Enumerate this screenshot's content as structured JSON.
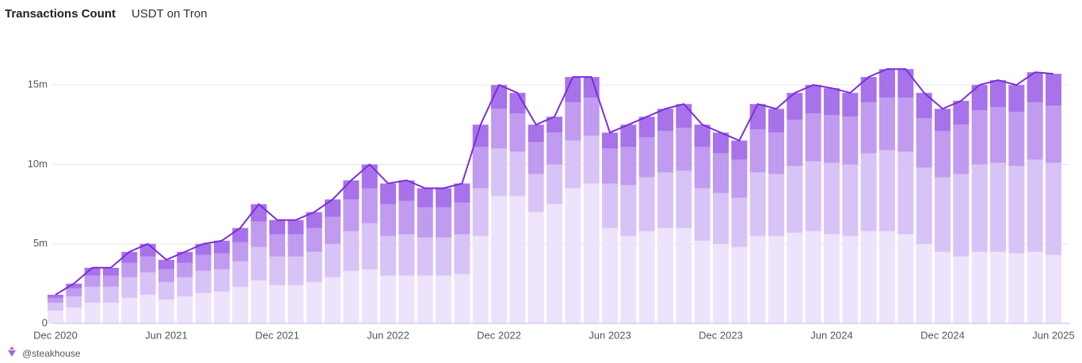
{
  "chart_data": {
    "type": "stacked-bar-line",
    "title": "Transactions Count",
    "subtitle": "USDT on Tron",
    "footer": "@steakhouse",
    "categories": [
      "Dec 2020",
      null,
      null,
      null,
      null,
      null,
      "Jun 2021",
      null,
      null,
      null,
      null,
      null,
      "Dec 2021",
      null,
      null,
      null,
      null,
      null,
      "Jun 2022",
      null,
      null,
      null,
      null,
      null,
      "Dec 2022",
      null,
      null,
      null,
      null,
      null,
      "Jun 2023",
      null,
      null,
      null,
      null,
      null,
      "Dec 2023",
      null,
      null,
      null,
      null,
      null,
      "Jun 2024",
      null,
      null,
      null,
      null,
      null,
      "Dec 2024",
      null,
      null,
      null,
      null,
      null,
      "Jun 2025"
    ],
    "series": [
      {
        "color": "#ede3fb",
        "values": [
          800000,
          1000000,
          1300000,
          1300000,
          1600000,
          1800000,
          1500000,
          1700000,
          1900000,
          2000000,
          2300000,
          2700000,
          2400000,
          2400000,
          2600000,
          2900000,
          3300000,
          3400000,
          3000000,
          3000000,
          3000000,
          3000000,
          3100000,
          5500000,
          8000000,
          8000000,
          7000000,
          7500000,
          8500000,
          8800000,
          6000000,
          5500000,
          5800000,
          6000000,
          6000000,
          5200000,
          5000000,
          4800000,
          5500000,
          5500000,
          5700000,
          5800000,
          5600000,
          5500000,
          5800000,
          5800000,
          5600000,
          5000000,
          4500000,
          4200000,
          4500000,
          4500000,
          4400000,
          4500000,
          4300000
        ]
      },
      {
        "color": "#d8c3f6",
        "values": [
          500000,
          700000,
          1000000,
          1000000,
          1300000,
          1400000,
          1100000,
          1200000,
          1400000,
          1400000,
          1600000,
          2100000,
          1800000,
          1800000,
          1900000,
          2100000,
          2500000,
          2900000,
          2500000,
          2600000,
          2400000,
          2400000,
          2500000,
          3000000,
          3000000,
          2800000,
          2400000,
          2500000,
          3000000,
          3000000,
          2800000,
          3200000,
          3400000,
          3500000,
          3600000,
          3300000,
          3200000,
          3100000,
          4000000,
          3900000,
          4200000,
          4400000,
          4500000,
          4500000,
          4900000,
          5100000,
          5200000,
          4800000,
          4700000,
          5200000,
          5500000,
          5600000,
          5500000,
          5800000,
          5800000
        ]
      },
      {
        "color": "#c09bf0",
        "values": [
          300000,
          500000,
          700000,
          700000,
          900000,
          1000000,
          800000,
          900000,
          1000000,
          1000000,
          1200000,
          1600000,
          1400000,
          1400000,
          1500000,
          1700000,
          2000000,
          2200000,
          2000000,
          2100000,
          1900000,
          1900000,
          2000000,
          2600000,
          2500000,
          2400000,
          2000000,
          2000000,
          2400000,
          2400000,
          2200000,
          2400000,
          2500000,
          2600000,
          2700000,
          2600000,
          2500000,
          2400000,
          2700000,
          2600000,
          2900000,
          3000000,
          3000000,
          3000000,
          3200000,
          3300000,
          3400000,
          3100000,
          2900000,
          3100000,
          3400000,
          3500000,
          3400000,
          3600000,
          3600000
        ]
      },
      {
        "color": "#a872ea",
        "values": [
          200000,
          300000,
          500000,
          500000,
          700000,
          800000,
          600000,
          700000,
          700000,
          800000,
          900000,
          1100000,
          900000,
          900000,
          1000000,
          1100000,
          1200000,
          1500000,
          1300000,
          1300000,
          1200000,
          1200000,
          1200000,
          1400000,
          1500000,
          1300000,
          1100000,
          1000000,
          1600000,
          1300000,
          1000000,
          1400000,
          1300000,
          1400000,
          1500000,
          1400000,
          1300000,
          1200000,
          1600000,
          1500000,
          1700000,
          1800000,
          1700000,
          1500000,
          1600000,
          1800000,
          1800000,
          1600000,
          1400000,
          1500000,
          1600000,
          1700000,
          1700000,
          1900000,
          2000000
        ]
      }
    ],
    "line_color": "#7a2fd8",
    "ylim": [
      0,
      18000000
    ],
    "yticks": [
      0,
      {
        "value": 5000000,
        "label": "5m"
      },
      {
        "value": 10000000,
        "label": "10m"
      },
      {
        "value": 15000000,
        "label": "15m"
      }
    ],
    "grid": true
  }
}
